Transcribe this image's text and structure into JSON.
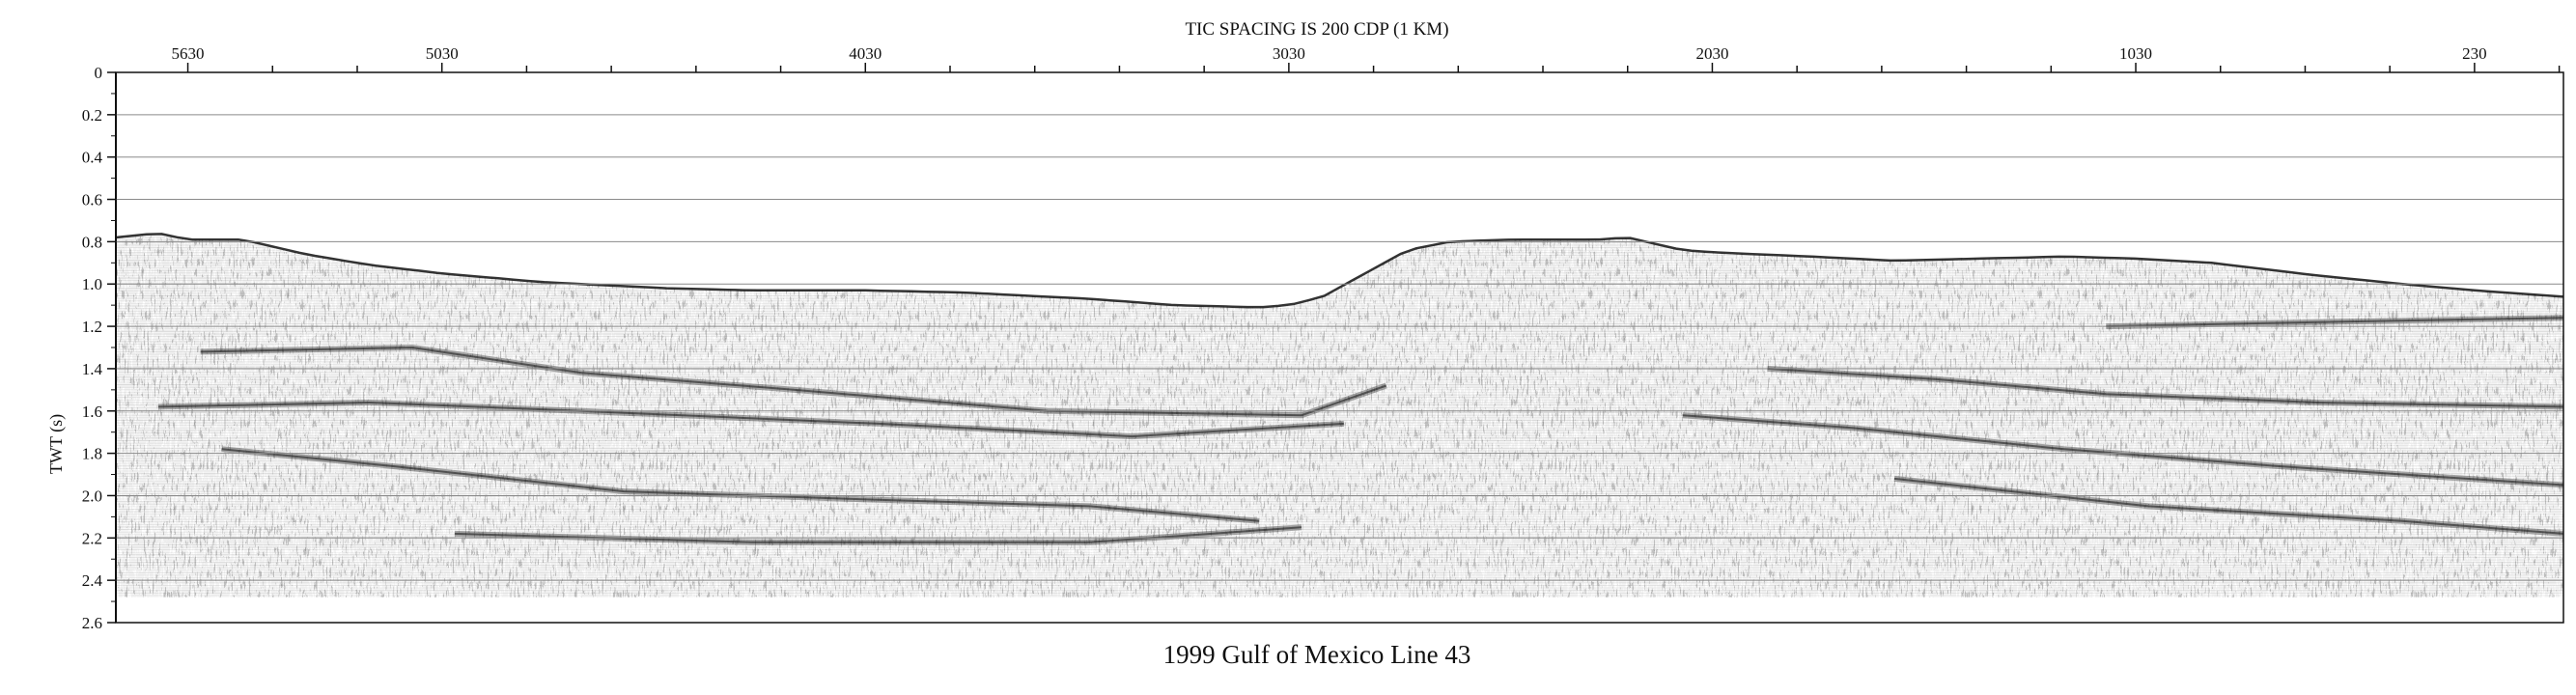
{
  "chart_data": {
    "type": "seismic-section",
    "title": "TIC SPACING IS 200 CDP (1 KM)",
    "caption": "1999 Gulf of Mexico Line 43",
    "ylabel": "TWT (s)",
    "xlabel": "",
    "y_axis": {
      "range": [
        0,
        2.6
      ],
      "ticks": [
        "0",
        "0.2",
        "0.4",
        "0.6",
        "0.8",
        "1.0",
        "1.2",
        "1.4",
        "1.6",
        "1.8",
        "2.0",
        "2.2",
        "2.4",
        "2.6"
      ],
      "minor_step": 0.1,
      "grid": true
    },
    "x_axis": {
      "range": [
        5800,
        20
      ],
      "tick_spacing_cdp": 200,
      "labels": [
        {
          "cdp": 5630,
          "text": "5630"
        },
        {
          "cdp": 5030,
          "text": "5030"
        },
        {
          "cdp": 4030,
          "text": "4030"
        },
        {
          "cdp": 3030,
          "text": "3030"
        },
        {
          "cdp": 2030,
          "text": "2030"
        },
        {
          "cdp": 1030,
          "text": "1030"
        },
        {
          "cdp": 230,
          "text": "230"
        }
      ]
    },
    "data_end_twt": 2.48,
    "seafloor": [
      {
        "cdp": 5800,
        "twt": 0.78
      },
      {
        "cdp": 5700,
        "twt": 0.76
      },
      {
        "cdp": 5630,
        "twt": 0.79
      },
      {
        "cdp": 5500,
        "twt": 0.79
      },
      {
        "cdp": 5350,
        "twt": 0.86
      },
      {
        "cdp": 5200,
        "twt": 0.91
      },
      {
        "cdp": 5030,
        "twt": 0.95
      },
      {
        "cdp": 4800,
        "twt": 0.99
      },
      {
        "cdp": 4500,
        "twt": 1.02
      },
      {
        "cdp": 4300,
        "twt": 1.03
      },
      {
        "cdp": 4030,
        "twt": 1.03
      },
      {
        "cdp": 3800,
        "twt": 1.04
      },
      {
        "cdp": 3500,
        "twt": 1.07
      },
      {
        "cdp": 3300,
        "twt": 1.1
      },
      {
        "cdp": 3100,
        "twt": 1.11
      },
      {
        "cdp": 3030,
        "twt": 1.1
      },
      {
        "cdp": 2950,
        "twt": 1.06
      },
      {
        "cdp": 2850,
        "twt": 0.95
      },
      {
        "cdp": 2750,
        "twt": 0.84
      },
      {
        "cdp": 2650,
        "twt": 0.8
      },
      {
        "cdp": 2500,
        "twt": 0.79
      },
      {
        "cdp": 2300,
        "twt": 0.79
      },
      {
        "cdp": 2230,
        "twt": 0.78
      },
      {
        "cdp": 2100,
        "twt": 0.84
      },
      {
        "cdp": 2030,
        "twt": 0.85
      },
      {
        "cdp": 1800,
        "twt": 0.87
      },
      {
        "cdp": 1600,
        "twt": 0.89
      },
      {
        "cdp": 1400,
        "twt": 0.88
      },
      {
        "cdp": 1200,
        "twt": 0.87
      },
      {
        "cdp": 1030,
        "twt": 0.88
      },
      {
        "cdp": 850,
        "twt": 0.9
      },
      {
        "cdp": 600,
        "twt": 0.96
      },
      {
        "cdp": 400,
        "twt": 1.0
      },
      {
        "cdp": 230,
        "twt": 1.03
      },
      {
        "cdp": 20,
        "twt": 1.06
      }
    ],
    "reflectors": [
      [
        {
          "cdp": 5600,
          "twt": 1.32
        },
        {
          "cdp": 5100,
          "twt": 1.3
        },
        {
          "cdp": 4700,
          "twt": 1.42
        },
        {
          "cdp": 4200,
          "twt": 1.5
        },
        {
          "cdp": 3600,
          "twt": 1.6
        },
        {
          "cdp": 3000,
          "twt": 1.62
        },
        {
          "cdp": 2800,
          "twt": 1.48
        }
      ],
      [
        {
          "cdp": 5700,
          "twt": 1.58
        },
        {
          "cdp": 5200,
          "twt": 1.56
        },
        {
          "cdp": 4700,
          "twt": 1.6
        },
        {
          "cdp": 4000,
          "twt": 1.66
        },
        {
          "cdp": 3400,
          "twt": 1.72
        },
        {
          "cdp": 2900,
          "twt": 1.66
        }
      ],
      [
        {
          "cdp": 5550,
          "twt": 1.78
        },
        {
          "cdp": 5150,
          "twt": 1.86
        },
        {
          "cdp": 4600,
          "twt": 1.98
        },
        {
          "cdp": 4000,
          "twt": 2.02
        },
        {
          "cdp": 3500,
          "twt": 2.05
        },
        {
          "cdp": 3100,
          "twt": 2.12
        }
      ],
      [
        {
          "cdp": 5000,
          "twt": 2.18
        },
        {
          "cdp": 4300,
          "twt": 2.22
        },
        {
          "cdp": 3500,
          "twt": 2.22
        },
        {
          "cdp": 3000,
          "twt": 2.15
        }
      ],
      [
        {
          "cdp": 1900,
          "twt": 1.4
        },
        {
          "cdp": 1500,
          "twt": 1.45
        },
        {
          "cdp": 1100,
          "twt": 1.52
        },
        {
          "cdp": 600,
          "twt": 1.56
        },
        {
          "cdp": 20,
          "twt": 1.58
        }
      ],
      [
        {
          "cdp": 2100,
          "twt": 1.62
        },
        {
          "cdp": 1700,
          "twt": 1.68
        },
        {
          "cdp": 1200,
          "twt": 1.78
        },
        {
          "cdp": 700,
          "twt": 1.86
        },
        {
          "cdp": 20,
          "twt": 1.95
        }
      ],
      [
        {
          "cdp": 1600,
          "twt": 1.92
        },
        {
          "cdp": 1000,
          "twt": 2.05
        },
        {
          "cdp": 400,
          "twt": 2.12
        },
        {
          "cdp": 20,
          "twt": 2.18
        }
      ],
      [
        {
          "cdp": 1100,
          "twt": 1.2
        },
        {
          "cdp": 600,
          "twt": 1.18
        },
        {
          "cdp": 20,
          "twt": 1.16
        }
      ]
    ],
    "colors": {
      "ink": "#111111",
      "background": "#ffffff",
      "grid": "#8a8a8a"
    }
  }
}
